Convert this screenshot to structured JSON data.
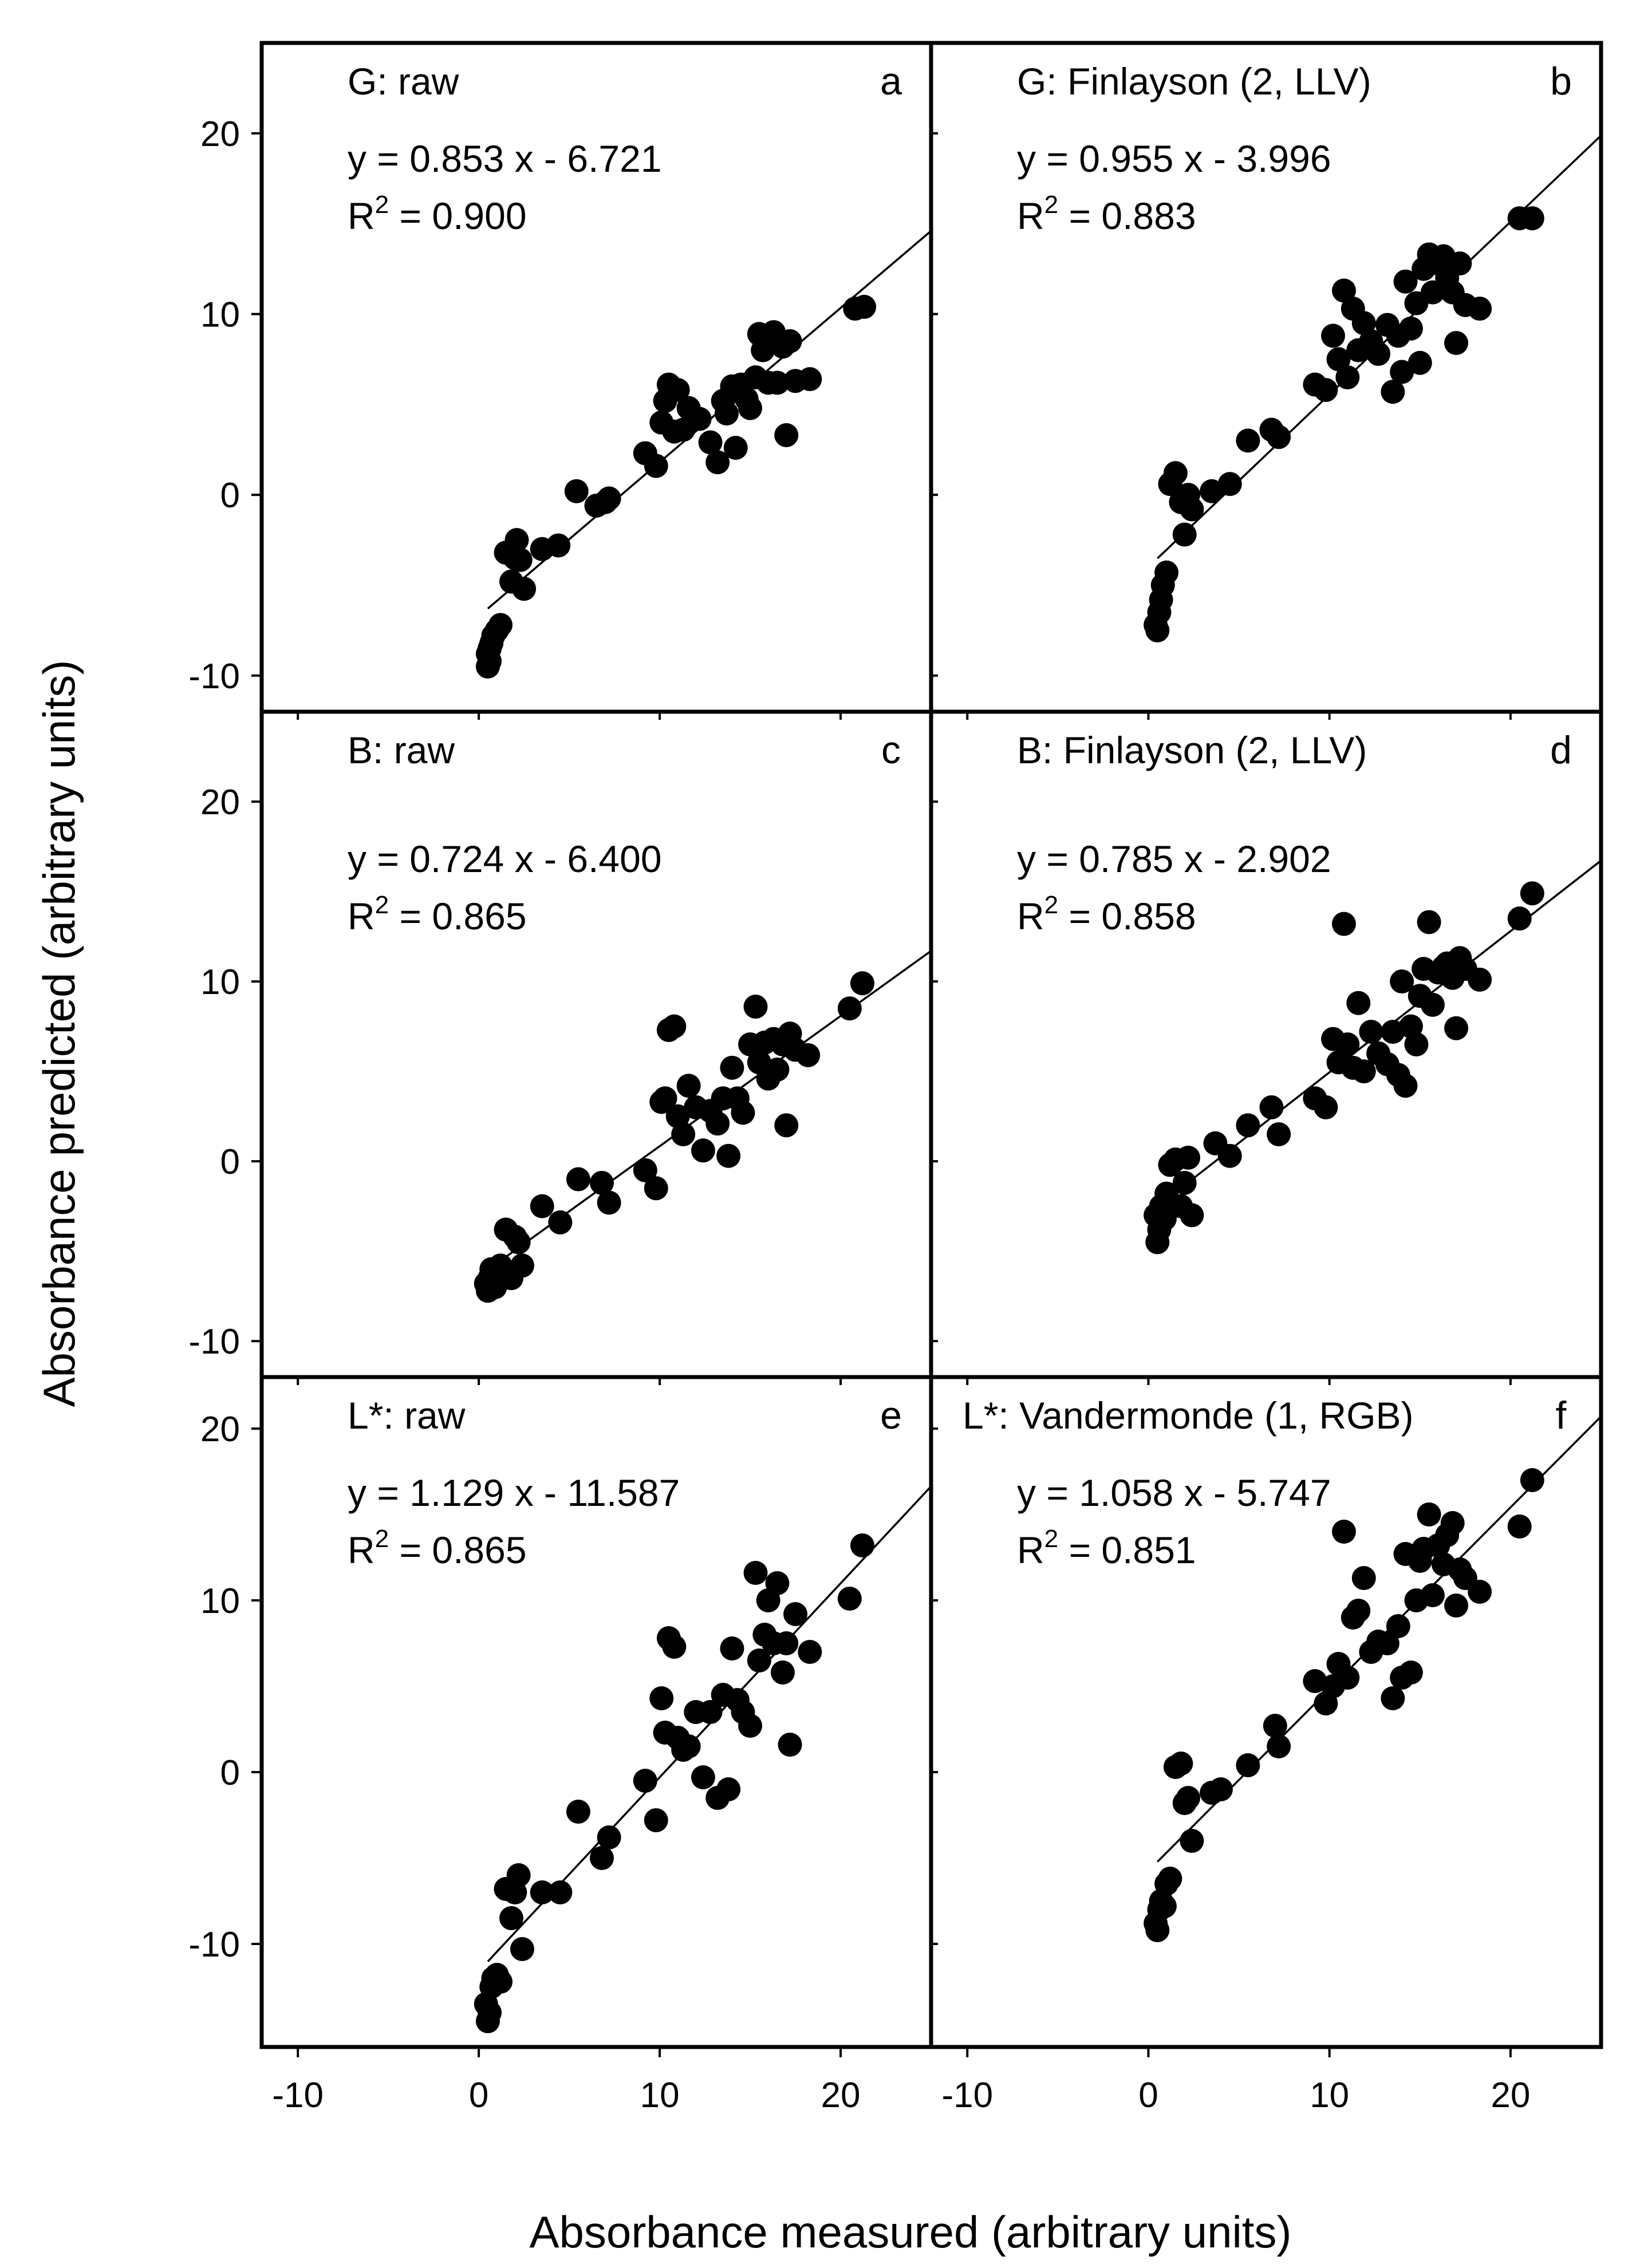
{
  "figure": {
    "xlabel": "Absorbance measured (arbitrary units)",
    "ylabel": "Absorbance predicted (arbitrary units)"
  },
  "chart_data": [
    {
      "type": "scatter",
      "panel": "a",
      "title": "G: raw",
      "equation": "y = 0.853 x - 6.721",
      "r2_prefix": "R",
      "r2_exp": "2",
      "r2_value": " = 0.900",
      "fit": {
        "slope": 0.853,
        "intercept": -6.721,
        "x_range": [
          0.5,
          25
        ]
      },
      "xlim": [
        -12,
        25
      ],
      "ylim": [
        -12,
        25
      ],
      "xticks": [
        -10,
        0,
        10,
        20
      ],
      "yticks": [
        -10,
        0,
        10,
        20
      ],
      "x": [
        0.5,
        0.5,
        0.6,
        0.6,
        0.7,
        0.8,
        1.0,
        1.2,
        1.5,
        1.8,
        2.0,
        2.1,
        2.3,
        2.5,
        3.5,
        4.4,
        5.4,
        6.5,
        7.0,
        7.2,
        9.2,
        9.8,
        10.1,
        10.3,
        10.5,
        10.8,
        11.0,
        11.3,
        11.6,
        12.2,
        12.8,
        13.2,
        13.5,
        13.7,
        14.0,
        14.2,
        14.5,
        14.8,
        15.0,
        15.3,
        15.5,
        15.7,
        16.0,
        16.3,
        16.5,
        16.8,
        17.0,
        17.2,
        17.5,
        18.3,
        20.8,
        21.3
      ],
      "y": [
        -9.5,
        -8.8,
        -9.2,
        -8.5,
        -8.2,
        -7.8,
        -7.5,
        -7.2,
        -3.2,
        -4.8,
        -3.5,
        -2.5,
        -3.6,
        -5.2,
        -3.0,
        -2.8,
        0.2,
        -0.6,
        -0.4,
        -0.2,
        2.3,
        1.6,
        4.0,
        5.2,
        6.1,
        3.5,
        5.8,
        3.6,
        4.8,
        4.2,
        2.9,
        1.8,
        5.2,
        4.5,
        6.0,
        2.6,
        6.1,
        5.3,
        4.8,
        6.5,
        8.9,
        8.0,
        6.2,
        9.0,
        6.2,
        8.2,
        3.3,
        8.5,
        6.3,
        6.4,
        10.3,
        10.4
      ]
    },
    {
      "type": "scatter",
      "panel": "b",
      "title": "G: Finlayson (2, LLV)",
      "equation": "y = 0.955 x - 3.996",
      "r2_prefix": "R",
      "r2_exp": "2",
      "r2_value": " = 0.883",
      "fit": {
        "slope": 0.955,
        "intercept": -3.996,
        "x_range": [
          0.5,
          25
        ]
      },
      "xlim": [
        -12,
        25
      ],
      "ylim": [
        -12,
        25
      ],
      "xticks": [
        -10,
        0,
        10,
        20
      ],
      "yticks": [
        -10,
        0,
        10,
        20
      ],
      "x": [
        0.4,
        0.5,
        0.6,
        0.7,
        0.8,
        1.0,
        1.2,
        1.5,
        1.8,
        2.0,
        2.2,
        2.4,
        3.5,
        4.5,
        5.5,
        6.8,
        7.2,
        9.2,
        9.8,
        10.2,
        10.5,
        10.8,
        11.0,
        11.3,
        11.6,
        11.9,
        12.3,
        12.7,
        13.2,
        13.5,
        13.8,
        14.0,
        14.2,
        14.5,
        14.8,
        15.0,
        15.2,
        15.5,
        15.7,
        16.0,
        16.3,
        16.5,
        16.8,
        17.0,
        17.2,
        17.5,
        18.3,
        20.5,
        21.2
      ],
      "y": [
        -7.2,
        -7.5,
        -6.5,
        -5.8,
        -5.0,
        -4.3,
        0.6,
        1.2,
        -0.4,
        -2.2,
        0.0,
        -0.8,
        0.2,
        0.6,
        3.0,
        3.6,
        3.2,
        6.1,
        5.8,
        8.8,
        7.5,
        11.3,
        6.5,
        10.3,
        8.0,
        9.5,
        8.5,
        7.8,
        9.4,
        5.7,
        8.8,
        6.8,
        11.8,
        9.2,
        10.6,
        7.3,
        12.5,
        13.3,
        11.2,
        12.8,
        13.2,
        12.0,
        11.2,
        8.4,
        12.8,
        10.5,
        10.3,
        15.3,
        15.3
      ]
    },
    {
      "type": "scatter",
      "panel": "c",
      "title": "B: raw",
      "equation": "y = 0.724 x - 6.400",
      "r2_prefix": "R",
      "r2_exp": "2",
      "r2_value": " = 0.865",
      "fit": {
        "slope": 0.724,
        "intercept": -6.4,
        "x_range": [
          0.5,
          25
        ]
      },
      "xlim": [
        -12,
        25
      ],
      "ylim": [
        -12,
        25
      ],
      "xticks": [
        -10,
        0,
        10,
        20
      ],
      "yticks": [
        -10,
        0,
        10,
        20
      ],
      "x": [
        0.4,
        0.5,
        0.6,
        0.7,
        0.9,
        1.0,
        1.2,
        1.5,
        1.8,
        2.0,
        2.2,
        2.4,
        3.5,
        4.5,
        5.5,
        6.8,
        7.2,
        9.2,
        9.8,
        10.1,
        10.3,
        10.5,
        10.8,
        11.0,
        11.3,
        11.6,
        12.0,
        12.4,
        12.8,
        13.2,
        13.5,
        13.8,
        14.0,
        14.3,
        14.6,
        15.0,
        15.3,
        15.5,
        15.8,
        16.0,
        16.3,
        16.5,
        16.8,
        17.0,
        17.2,
        17.5,
        18.2,
        20.5,
        21.2
      ],
      "y": [
        -6.8,
        -7.2,
        -6.5,
        -6.0,
        -7.0,
        -6.2,
        -5.8,
        -3.8,
        -6.5,
        -4.2,
        -4.5,
        -5.8,
        -2.5,
        -3.4,
        -1.0,
        -1.2,
        -2.3,
        -0.5,
        -1.5,
        3.3,
        3.5,
        7.3,
        7.5,
        2.5,
        1.5,
        4.2,
        3.0,
        0.6,
        2.8,
        2.1,
        3.5,
        0.3,
        5.2,
        3.5,
        2.7,
        6.5,
        8.6,
        5.5,
        6.6,
        4.6,
        6.8,
        5.1,
        6.5,
        2.0,
        7.1,
        6.2,
        5.9,
        8.5,
        9.9
      ]
    },
    {
      "type": "scatter",
      "panel": "d",
      "title": "B: Finlayson (2, LLV)",
      "equation": "y = 0.785 x - 2.902",
      "r2_prefix": "R",
      "r2_exp": "2",
      "r2_value": " = 0.858",
      "fit": {
        "slope": 0.785,
        "intercept": -2.902,
        "x_range": [
          0.5,
          25
        ]
      },
      "xlim": [
        -12,
        25
      ],
      "ylim": [
        -12,
        25
      ],
      "xticks": [
        -10,
        0,
        10,
        20
      ],
      "yticks": [
        -10,
        0,
        10,
        20
      ],
      "x": [
        0.4,
        0.5,
        0.6,
        0.7,
        0.9,
        1.0,
        1.2,
        1.5,
        1.8,
        2.0,
        2.2,
        2.4,
        3.7,
        4.5,
        5.5,
        6.8,
        7.2,
        9.2,
        9.8,
        10.2,
        10.5,
        10.8,
        11.0,
        11.3,
        11.6,
        11.9,
        12.3,
        12.7,
        13.2,
        13.5,
        13.8,
        14.0,
        14.2,
        14.5,
        14.8,
        15.0,
        15.2,
        15.5,
        15.7,
        16.0,
        16.3,
        16.5,
        16.8,
        17.0,
        17.2,
        17.5,
        18.3,
        20.5,
        21.2
      ],
      "y": [
        -3.0,
        -4.5,
        -3.8,
        -2.5,
        -3.2,
        -1.8,
        -0.2,
        0.1,
        -2.5,
        -1.2,
        0.2,
        -3.0,
        1.0,
        0.3,
        2.0,
        3.0,
        1.5,
        3.5,
        3.0,
        6.8,
        5.5,
        13.2,
        6.5,
        5.2,
        8.8,
        5.0,
        7.2,
        6.0,
        5.4,
        7.2,
        4.8,
        10.0,
        4.2,
        7.5,
        6.5,
        9.2,
        10.7,
        13.3,
        8.7,
        10.5,
        10.8,
        11.0,
        10.2,
        7.4,
        11.3,
        10.7,
        10.1,
        13.5,
        14.9
      ]
    },
    {
      "type": "scatter",
      "panel": "e",
      "title": "L*: raw",
      "equation": "y = 1.129 x - 11.587",
      "r2_prefix": "R",
      "r2_exp": "2",
      "r2_value": " = 0.865",
      "fit": {
        "slope": 1.129,
        "intercept": -11.587,
        "x_range": [
          0.5,
          25
        ]
      },
      "xlim": [
        -12,
        25
      ],
      "ylim": [
        -16,
        23
      ],
      "xticks": [
        -10,
        0,
        10,
        20
      ],
      "yticks": [
        -10,
        0,
        10,
        20
      ],
      "x": [
        0.4,
        0.5,
        0.6,
        0.7,
        0.8,
        1.0,
        1.2,
        1.5,
        1.8,
        2.0,
        2.2,
        2.4,
        3.5,
        4.5,
        5.5,
        6.8,
        7.2,
        9.2,
        9.8,
        10.1,
        10.3,
        10.5,
        10.8,
        11.0,
        11.3,
        11.6,
        12.0,
        12.4,
        12.8,
        13.2,
        13.5,
        13.8,
        14.0,
        14.3,
        14.6,
        15.0,
        15.3,
        15.5,
        15.8,
        16.0,
        16.3,
        16.5,
        16.8,
        17.0,
        17.2,
        17.5,
        18.3,
        20.5,
        21.2
      ],
      "y": [
        -13.5,
        -14.5,
        -14.0,
        -12.5,
        -12.0,
        -11.8,
        -12.2,
        -6.8,
        -8.5,
        -7.0,
        -6.0,
        -10.3,
        -7.0,
        -7.0,
        -2.3,
        -5.0,
        -3.8,
        -0.5,
        -2.8,
        4.3,
        2.3,
        7.8,
        7.3,
        2.0,
        1.3,
        1.5,
        3.5,
        -0.3,
        3.5,
        -1.5,
        4.5,
        -1.0,
        7.2,
        4.2,
        3.5,
        2.7,
        11.6,
        6.5,
        8.0,
        10.0,
        7.5,
        11.0,
        5.8,
        7.5,
        1.6,
        9.2,
        7.0,
        10.1,
        13.2
      ]
    },
    {
      "type": "scatter",
      "panel": "f",
      "title": "L*: Vandermonde (1, RGB)",
      "equation": "y = 1.058 x - 5.747",
      "r2_prefix": "R",
      "r2_exp": "2",
      "r2_value": " = 0.851",
      "fit": {
        "slope": 1.058,
        "intercept": -5.747,
        "x_range": [
          0.5,
          25
        ]
      },
      "xlim": [
        -12,
        25
      ],
      "ylim": [
        -16,
        23
      ],
      "xticks": [
        -10,
        0,
        10,
        20
      ],
      "yticks": [
        -10,
        0,
        10,
        20
      ],
      "x": [
        0.4,
        0.5,
        0.6,
        0.7,
        0.9,
        1.0,
        1.2,
        1.5,
        1.8,
        2.0,
        2.2,
        2.4,
        3.5,
        4.0,
        5.5,
        7.0,
        7.2,
        9.2,
        9.8,
        10.2,
        10.5,
        10.8,
        11.0,
        11.3,
        11.6,
        11.9,
        12.3,
        12.7,
        13.2,
        13.5,
        13.8,
        14.0,
        14.2,
        14.5,
        14.8,
        15.0,
        15.2,
        15.5,
        15.7,
        16.0,
        16.3,
        16.5,
        16.8,
        17.0,
        17.2,
        17.5,
        18.3,
        20.5,
        21.2
      ],
      "y": [
        -8.8,
        -9.2,
        -8.0,
        -7.5,
        -7.8,
        -6.5,
        -6.2,
        0.3,
        0.5,
        -1.8,
        -1.5,
        -4.0,
        -1.2,
        -1.0,
        0.4,
        2.7,
        1.5,
        5.3,
        4.0,
        5.0,
        6.3,
        14.0,
        5.5,
        9.0,
        9.4,
        11.3,
        7.0,
        7.6,
        7.5,
        4.3,
        8.5,
        5.5,
        12.7,
        5.8,
        10.0,
        12.3,
        13.0,
        15.0,
        10.3,
        13.2,
        12.1,
        13.8,
        14.5,
        9.7,
        11.8,
        11.3,
        10.5,
        14.3,
        17.0
      ]
    }
  ]
}
